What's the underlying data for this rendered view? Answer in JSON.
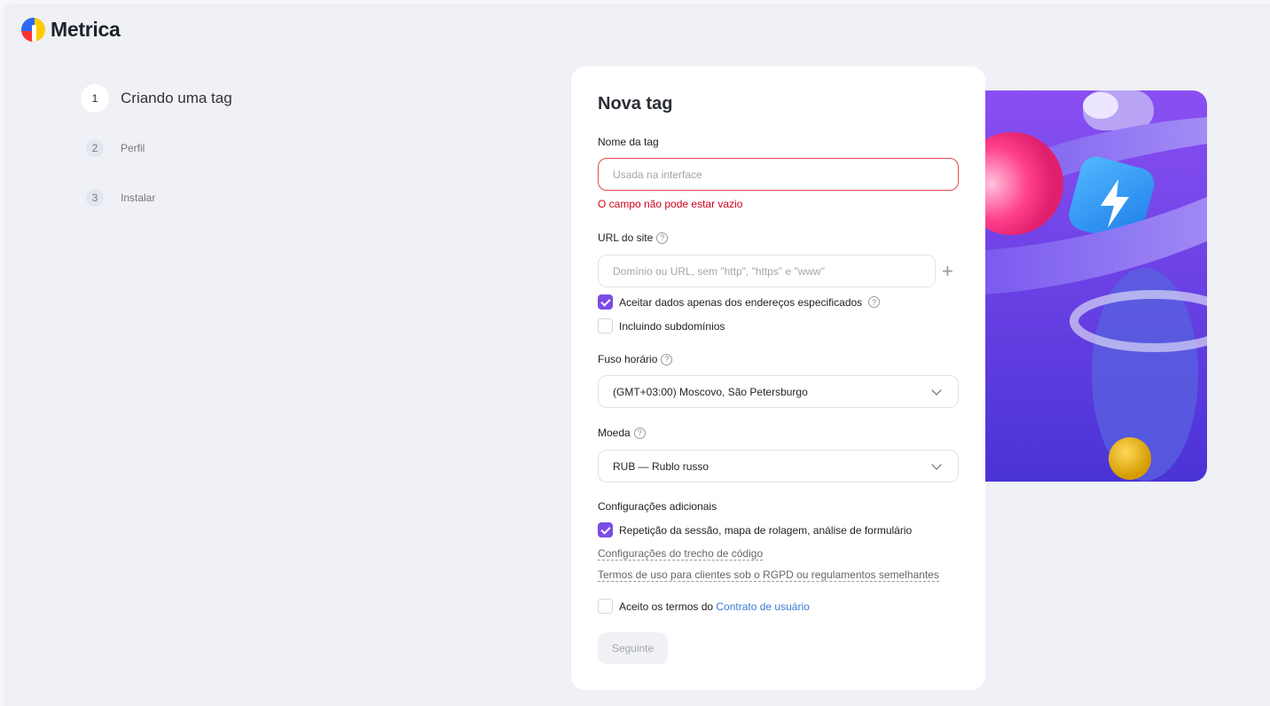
{
  "app": {
    "name": "Metrica"
  },
  "steps": [
    {
      "num": "1",
      "label": "Criando uma tag"
    },
    {
      "num": "2",
      "label": "Perfil"
    },
    {
      "num": "3",
      "label": "Instalar"
    }
  ],
  "form": {
    "title": "Nova tag",
    "tag_name": {
      "label": "Nome da tag",
      "placeholder": "Usada na interface",
      "value": "",
      "error": "O campo não pode estar vazio"
    },
    "url": {
      "label": "URL do site",
      "placeholder": "Domínio ou URL, sem \"http\", \"https\" e \"www\"",
      "value": "",
      "add_icon": "plus-icon"
    },
    "accept_specified": {
      "label": "Aceitar dados apenas dos endereços especificados",
      "checked": true
    },
    "subdomains": {
      "label": "Incluindo subdomínios",
      "checked": false
    },
    "timezone": {
      "label": "Fuso horário",
      "value": "(GMT+03:00) Moscovo, São Petersburgo"
    },
    "currency": {
      "label": "Moeda",
      "value": "RUB — Rublo russo"
    },
    "additional": {
      "label": "Configurações adicionais"
    },
    "session_replay": {
      "label": "Repetição da sessão, mapa de rolagem, análise de formulário",
      "checked": true
    },
    "code_settings_link": "Configurações do trecho de código",
    "gdpr_link": "Termos de uso para clientes sob o RGPD ou regulamentos semelhantes",
    "terms": {
      "prefix": "Aceito os termos do ",
      "link": "Contrato de usuário",
      "checked": false
    },
    "next_button": "Seguinte",
    "help_glyph": "?"
  },
  "colors": {
    "accent": "#7b4ce6",
    "error": "#d0021b",
    "link": "#3a7bd5"
  }
}
